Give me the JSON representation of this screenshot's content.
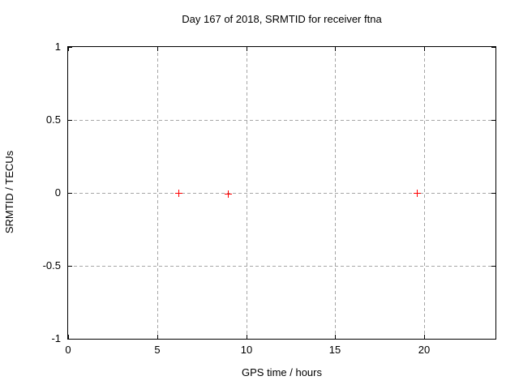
{
  "chart_data": {
    "type": "scatter",
    "title": "Day 167 of 2018, SRMTID for receiver ftna",
    "xlabel": "GPS time / hours",
    "ylabel": "SRMTID / TECUs",
    "xlim": [
      0,
      24
    ],
    "ylim": [
      -1,
      1
    ],
    "xticks": [
      0,
      5,
      10,
      15,
      20
    ],
    "yticks": [
      -1,
      -0.5,
      0,
      0.5,
      1
    ],
    "grid": true,
    "legend": "none",
    "marker": "plus",
    "marker_color": "#ff0000",
    "grid_color": "#a6a6a6",
    "border_color": "#000000",
    "background_color": "#ffffff",
    "series": [
      {
        "name": "SRMTID",
        "points": [
          {
            "x": 6.2,
            "y": 0.0
          },
          {
            "x": 9.0,
            "y": -0.01
          },
          {
            "x": 19.6,
            "y": 0.0
          }
        ]
      }
    ]
  }
}
